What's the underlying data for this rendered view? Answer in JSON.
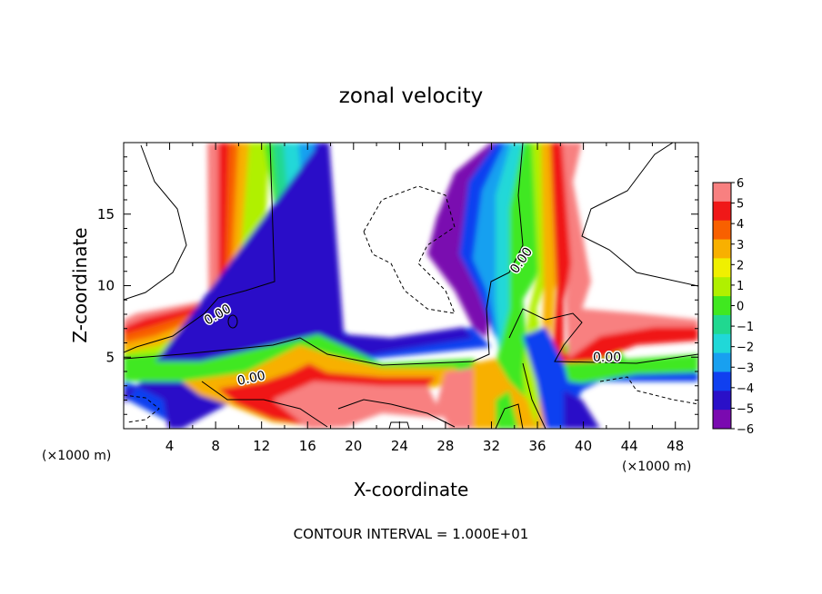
{
  "chart_data": {
    "type": "heatmap",
    "title": "zonal velocity",
    "xlabel": "X-coordinate",
    "ylabel": "Z-coordinate",
    "x_unit": "(×1000 m)",
    "footer": "CONTOUR INTERVAL = 1.000E+01",
    "xlim": [
      0,
      50
    ],
    "ylim": [
      0,
      20
    ],
    "x_ticks": [
      "4",
      "8",
      "12",
      "16",
      "20",
      "24",
      "28",
      "32",
      "36",
      "40",
      "44",
      "48"
    ],
    "y_ticks": [
      "5",
      "10",
      "15"
    ],
    "colorbar": {
      "min": -6,
      "max": 6,
      "labels": [
        "6",
        "5",
        "4",
        "3",
        "2",
        "1",
        "0",
        "−1",
        "−2",
        "−3",
        "−4",
        "−5",
        "−6"
      ]
    },
    "contour_labels": [
      "0.00",
      "0.00",
      "0.00",
      "0.00"
    ],
    "colors": {
      "neg6": "#7a0ab0",
      "neg5": "#2a10c8",
      "neg4": "#1040f0",
      "neg3": "#18a0f0",
      "neg2": "#20d8d8",
      "neg1": "#20d890",
      "zero": "#40e820",
      "pos1": "#b0f000",
      "pos2": "#f0f000",
      "pos3": "#f8b000",
      "pos4": "#f86000",
      "pos5": "#f01818",
      "pos6": "#f88080"
    }
  }
}
